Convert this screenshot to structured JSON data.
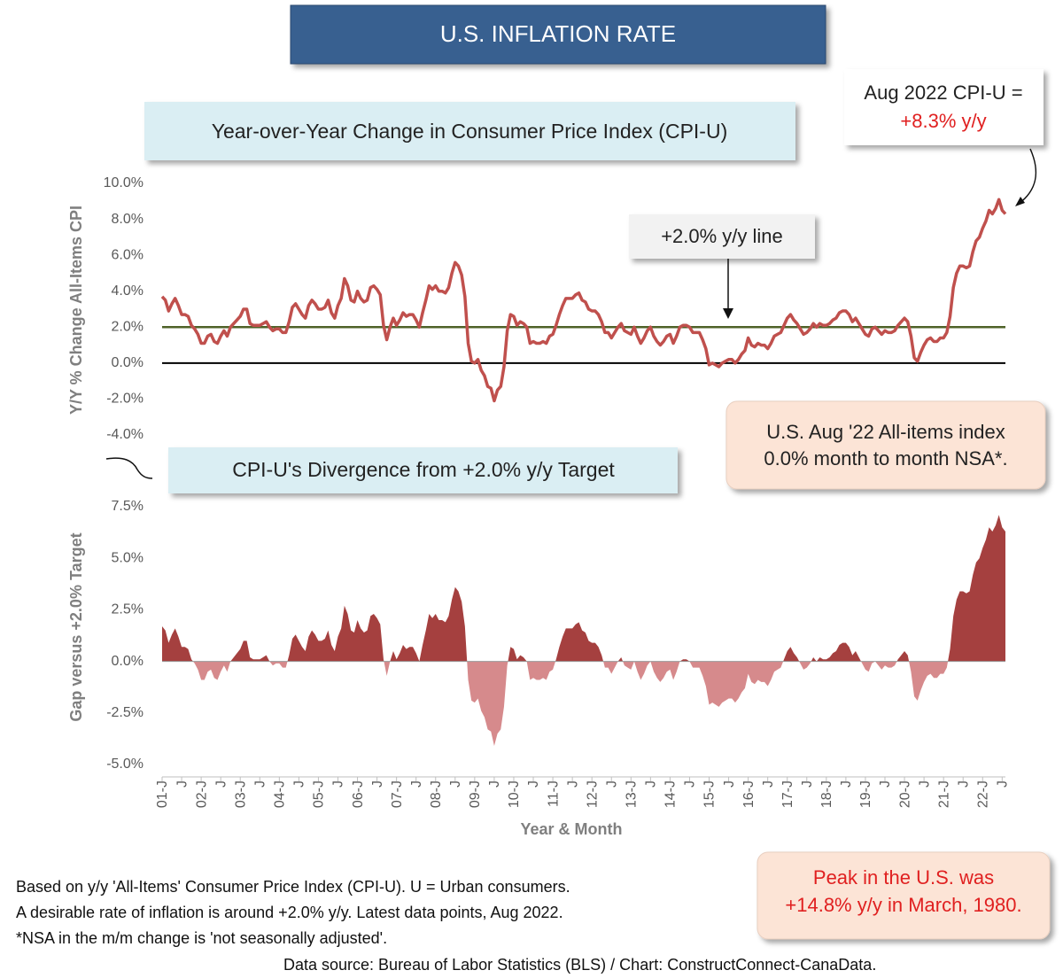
{
  "header": {
    "title": "U.S. INFLATION RATE"
  },
  "chart_data": [
    {
      "type": "line",
      "title": "Year-over-Year Change in Consumer Price Index (CPI-U)",
      "y_label": "Y/Y % Change All-Items CPI",
      "color": "#c0504d",
      "values": [
        3.7,
        3.5,
        2.9,
        3.3,
        3.6,
        3.2,
        2.7,
        2.7,
        2.6,
        2.1,
        1.9,
        1.6,
        1.1,
        1.1,
        1.5,
        1.6,
        1.2,
        1.1,
        1.5,
        1.8,
        1.5,
        2.0,
        2.2,
        2.4,
        2.6,
        3.0,
        3.0,
        2.2,
        2.1,
        2.1,
        2.1,
        2.2,
        2.3,
        2.0,
        1.8,
        1.9,
        1.9,
        1.7,
        1.7,
        2.3,
        3.1,
        3.3,
        3.0,
        2.7,
        2.5,
        3.2,
        3.5,
        3.3,
        3.0,
        3.0,
        3.1,
        3.5,
        2.8,
        2.5,
        3.2,
        3.6,
        4.7,
        4.3,
        3.5,
        3.4,
        4.0,
        3.6,
        3.4,
        3.5,
        4.2,
        4.3,
        4.1,
        3.8,
        2.1,
        1.3,
        2.0,
        2.5,
        2.1,
        2.4,
        2.8,
        2.6,
        2.7,
        2.7,
        2.4,
        2.0,
        2.8,
        3.5,
        4.3,
        4.1,
        4.3,
        4.0,
        4.0,
        3.9,
        4.2,
        5.0,
        5.6,
        5.4,
        4.9,
        3.7,
        1.1,
        0.1,
        0.0,
        0.2,
        -0.4,
        -0.7,
        -1.3,
        -1.4,
        -2.1,
        -1.5,
        -1.3,
        -0.2,
        1.8,
        2.7,
        2.6,
        2.1,
        2.3,
        2.2,
        2.0,
        1.1,
        1.2,
        1.1,
        1.1,
        1.2,
        1.1,
        1.5,
        1.6,
        2.1,
        2.7,
        3.2,
        3.6,
        3.6,
        3.6,
        3.8,
        3.9,
        3.5,
        3.4,
        3.0,
        2.9,
        2.9,
        2.7,
        2.3,
        1.7,
        1.7,
        1.4,
        1.7,
        2.0,
        2.2,
        1.8,
        1.7,
        1.6,
        2.0,
        1.5,
        1.1,
        1.4,
        1.8,
        2.0,
        1.5,
        1.2,
        1.0,
        1.2,
        1.5,
        1.6,
        1.1,
        1.5,
        2.0,
        2.1,
        2.1,
        2.0,
        1.7,
        1.7,
        1.7,
        1.3,
        0.8,
        -0.1,
        0.0,
        -0.1,
        -0.2,
        0.0,
        0.1,
        0.2,
        0.2,
        0.0,
        0.2,
        0.5,
        0.7,
        1.4,
        1.0,
        0.9,
        1.1,
        1.0,
        1.0,
        0.8,
        1.1,
        1.5,
        1.6,
        1.7,
        2.1,
        2.5,
        2.7,
        2.4,
        2.2,
        1.9,
        1.6,
        1.7,
        1.9,
        2.2,
        2.0,
        2.2,
        2.1,
        2.1,
        2.2,
        2.4,
        2.5,
        2.8,
        2.9,
        2.9,
        2.7,
        2.3,
        2.5,
        2.2,
        1.9,
        1.6,
        1.5,
        1.9,
        2.0,
        1.8,
        1.6,
        1.8,
        1.7,
        1.7,
        1.8,
        2.1,
        2.3,
        2.5,
        2.3,
        1.5,
        0.3,
        0.1,
        0.6,
        1.0,
        1.3,
        1.4,
        1.2,
        1.2,
        1.4,
        1.4,
        1.7,
        2.6,
        4.2,
        5.0,
        5.4,
        5.4,
        5.3,
        5.4,
        6.2,
        6.8,
        7.0,
        7.5,
        7.9,
        8.5,
        8.3,
        8.6,
        9.1,
        8.5,
        8.3
      ],
      "ylim": [
        -4,
        10
      ],
      "yticks": [
        {
          "value": 10,
          "label": "10.0%"
        },
        {
          "value": 8,
          "label": "8.0%"
        },
        {
          "value": 6,
          "label": "6.0%"
        },
        {
          "value": 4,
          "label": "4.0%"
        },
        {
          "value": 2,
          "label": "2.0%"
        },
        {
          "value": 0,
          "label": "0.0%"
        },
        {
          "value": -2,
          "label": "-2.0%"
        },
        {
          "value": -4,
          "label": "-4.0%"
        }
      ],
      "target_line": {
        "value": 2,
        "color": "#4f6228",
        "label": "+2.0% y/y line"
      },
      "zero_line_color": "#000000",
      "annotations": [
        "Aug 2022 CPI-U =",
        "+8.3% y/y"
      ]
    },
    {
      "type": "area",
      "title": "CPI-U's Divergence from +2.0% y/y Target",
      "y_label": "Gap versus +2.0% Target",
      "x_label": "Year & Month",
      "positive_color": "#a5403f",
      "negative_color": "#d68a8c",
      "categories": [
        "01-J",
        null,
        null,
        null,
        null,
        null,
        "J",
        null,
        null,
        null,
        null,
        null,
        "02-J",
        null,
        null,
        null,
        null,
        null,
        "J",
        null,
        null,
        null,
        null,
        null,
        "03-J",
        null,
        null,
        null,
        null,
        null,
        "J",
        null,
        null,
        null,
        null,
        null,
        "04-J",
        null,
        null,
        null,
        null,
        null,
        "J",
        null,
        null,
        null,
        null,
        null,
        "05-J",
        null,
        null,
        null,
        null,
        null,
        "J",
        null,
        null,
        null,
        null,
        null,
        "06-J",
        null,
        null,
        null,
        null,
        null,
        "J",
        null,
        null,
        null,
        null,
        null,
        "07-J",
        null,
        null,
        null,
        null,
        null,
        "J",
        null,
        null,
        null,
        null,
        null,
        "08-J",
        null,
        null,
        null,
        null,
        null,
        "J",
        null,
        null,
        null,
        null,
        null,
        "09-J",
        null,
        null,
        null,
        null,
        null,
        "J",
        null,
        null,
        null,
        null,
        null,
        "10-J",
        null,
        null,
        null,
        null,
        null,
        "J",
        null,
        null,
        null,
        null,
        null,
        "11-J",
        null,
        null,
        null,
        null,
        null,
        "J",
        null,
        null,
        null,
        null,
        null,
        "12-J",
        null,
        null,
        null,
        null,
        null,
        "J",
        null,
        null,
        null,
        null,
        null,
        "13-J",
        null,
        null,
        null,
        null,
        null,
        "J",
        null,
        null,
        null,
        null,
        null,
        "14-J",
        null,
        null,
        null,
        null,
        null,
        "J",
        null,
        null,
        null,
        null,
        null,
        "15-J",
        null,
        null,
        null,
        null,
        null,
        "J",
        null,
        null,
        null,
        null,
        null,
        "16-J",
        null,
        null,
        null,
        null,
        null,
        "J",
        null,
        null,
        null,
        null,
        null,
        "17-J",
        null,
        null,
        null,
        null,
        null,
        "J",
        null,
        null,
        null,
        null,
        null,
        "18-J",
        null,
        null,
        null,
        null,
        null,
        "J",
        null,
        null,
        null,
        null,
        null,
        "19-J",
        null,
        null,
        null,
        null,
        null,
        "J",
        null,
        null,
        null,
        null,
        null,
        "20-J",
        null,
        null,
        null,
        null,
        null,
        "J",
        null,
        null,
        null,
        null,
        null,
        "21-J",
        null,
        null,
        null,
        null,
        null,
        "J",
        null,
        null,
        null,
        null,
        null,
        "22-J",
        null,
        null,
        null,
        null,
        null,
        "J",
        null
      ],
      "values": [
        1.7,
        1.5,
        0.9,
        1.3,
        1.6,
        1.2,
        0.7,
        0.7,
        0.6,
        0.1,
        -0.1,
        -0.4,
        -0.9,
        -0.9,
        -0.5,
        -0.4,
        -0.8,
        -0.9,
        -0.5,
        -0.2,
        -0.5,
        0.0,
        0.2,
        0.4,
        0.6,
        1.0,
        1.0,
        0.2,
        0.1,
        0.1,
        0.1,
        0.2,
        0.3,
        0.0,
        -0.2,
        -0.1,
        -0.1,
        -0.3,
        -0.3,
        0.3,
        1.1,
        1.3,
        1.0,
        0.7,
        0.5,
        1.2,
        1.5,
        1.3,
        1.0,
        1.0,
        1.1,
        1.5,
        0.8,
        0.5,
        1.2,
        1.6,
        2.7,
        2.3,
        1.5,
        1.4,
        2.0,
        1.6,
        1.4,
        1.5,
        2.2,
        2.3,
        2.1,
        1.8,
        0.1,
        -0.7,
        0.0,
        0.5,
        0.1,
        0.4,
        0.8,
        0.6,
        0.7,
        0.7,
        0.4,
        0.0,
        0.8,
        1.5,
        2.3,
        2.1,
        2.3,
        2.0,
        2.0,
        1.9,
        2.2,
        3.0,
        3.6,
        3.4,
        2.9,
        1.7,
        -0.9,
        -1.9,
        -2.0,
        -1.8,
        -2.4,
        -2.7,
        -3.3,
        -3.4,
        -4.1,
        -3.5,
        -3.3,
        -2.2,
        -0.2,
        0.7,
        0.6,
        0.1,
        0.3,
        0.2,
        0.0,
        -0.9,
        -0.8,
        -0.9,
        -0.9,
        -0.8,
        -0.9,
        -0.5,
        -0.4,
        0.1,
        0.7,
        1.2,
        1.6,
        1.6,
        1.6,
        1.8,
        1.9,
        1.5,
        1.4,
        1.0,
        0.9,
        0.9,
        0.7,
        0.3,
        -0.3,
        -0.3,
        -0.6,
        -0.3,
        0.0,
        0.2,
        -0.2,
        -0.3,
        -0.4,
        0.0,
        -0.5,
        -0.9,
        -0.6,
        -0.2,
        0.0,
        -0.5,
        -0.8,
        -1.0,
        -0.8,
        -0.5,
        -0.4,
        -0.9,
        -0.5,
        0.0,
        0.1,
        0.1,
        0.0,
        -0.3,
        -0.3,
        -0.3,
        -0.7,
        -1.2,
        -2.1,
        -2.0,
        -2.1,
        -2.2,
        -2.0,
        -1.9,
        -1.8,
        -1.8,
        -2.0,
        -1.8,
        -1.5,
        -1.3,
        -0.6,
        -1.0,
        -1.1,
        -0.9,
        -1.0,
        -1.0,
        -1.2,
        -0.9,
        -0.5,
        -0.4,
        -0.3,
        0.1,
        0.5,
        0.7,
        0.4,
        0.2,
        -0.1,
        -0.4,
        -0.3,
        -0.1,
        0.2,
        0.0,
        0.2,
        0.1,
        0.1,
        0.2,
        0.4,
        0.5,
        0.8,
        0.9,
        0.9,
        0.7,
        0.3,
        0.5,
        0.2,
        -0.1,
        -0.4,
        -0.5,
        -0.1,
        0.0,
        -0.2,
        -0.4,
        -0.2,
        -0.3,
        -0.3,
        -0.2,
        0.1,
        0.3,
        0.5,
        0.3,
        -0.5,
        -1.7,
        -1.9,
        -1.4,
        -1.0,
        -0.7,
        -0.6,
        -0.8,
        -0.8,
        -0.6,
        -0.6,
        -0.3,
        0.6,
        2.2,
        3.0,
        3.4,
        3.4,
        3.3,
        3.4,
        4.2,
        4.8,
        5.0,
        5.5,
        5.9,
        6.5,
        6.3,
        6.6,
        7.1,
        6.5,
        6.3
      ],
      "ylim": [
        -5,
        7.5
      ],
      "yticks": [
        {
          "value": 7.5,
          "label": "7.5%"
        },
        {
          "value": 5,
          "label": "5.0%"
        },
        {
          "value": 2.5,
          "label": "2.5%"
        },
        {
          "value": 0,
          "label": "0.0%"
        },
        {
          "value": -2.5,
          "label": "-2.5%"
        },
        {
          "value": -5,
          "label": "-5.0%"
        }
      ]
    }
  ],
  "callouts": {
    "monthly": [
      "U.S. Aug '22 All-items index",
      "0.0% month to month NSA*."
    ],
    "peak": [
      "Peak in the U.S. was",
      "+14.8% y/y in March, 1980."
    ]
  },
  "notes": [
    "Based on y/y 'All-Items' Consumer Price Index (CPI-U). U = Urban consumers.",
    "A desirable rate of inflation is around +2.0% y/y. Latest data points, Aug 2022.",
    "*NSA in the m/m change is 'not seasonally adjusted'."
  ],
  "source": "Data source: Bureau of Labor Statistics (BLS) / Chart: ConstructConnect-CanaData."
}
